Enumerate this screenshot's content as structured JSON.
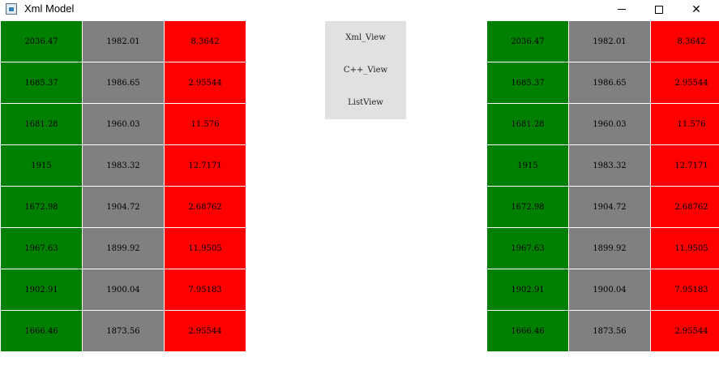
{
  "window": {
    "title": "Xml Model",
    "controls": [
      "minimize-icon",
      "maximize-icon",
      "close-icon"
    ],
    "close_glyph": "✕"
  },
  "colors": {
    "col1": "#008000",
    "col2": "#808080",
    "col3": "#ff0000"
  },
  "left_table": {
    "rows": [
      [
        "2036.47",
        "1982.01",
        "8.3642"
      ],
      [
        "1685.37",
        "1986.65",
        "2.95544"
      ],
      [
        "1681.28",
        "1960.03",
        "11.576"
      ],
      [
        "1915",
        "1983.32",
        "12.7171"
      ],
      [
        "1672.98",
        "1904.72",
        "2.68762"
      ],
      [
        "1967.63",
        "1899.92",
        "11.9505"
      ],
      [
        "1902.91",
        "1900.04",
        "7.95183"
      ],
      [
        "1666.46",
        "1873.56",
        "2.95544"
      ]
    ]
  },
  "right_table": {
    "rows": [
      [
        "2036.47",
        "1982.01",
        "8.3642"
      ],
      [
        "1685.37",
        "1986.65",
        "2.95544"
      ],
      [
        "1681.28",
        "1960.03",
        "11.576"
      ],
      [
        "1915",
        "1983.32",
        "12.7171"
      ],
      [
        "1672.98",
        "1904.72",
        "2.68762"
      ],
      [
        "1967.63",
        "1899.92",
        "11.9505"
      ],
      [
        "1902.91",
        "1900.04",
        "7.95183"
      ],
      [
        "1666.46",
        "1873.56",
        "2.95544"
      ]
    ]
  },
  "views": {
    "buttons": [
      {
        "label": "Xml_View"
      },
      {
        "label": "C++_View"
      },
      {
        "label": "ListView"
      }
    ]
  }
}
